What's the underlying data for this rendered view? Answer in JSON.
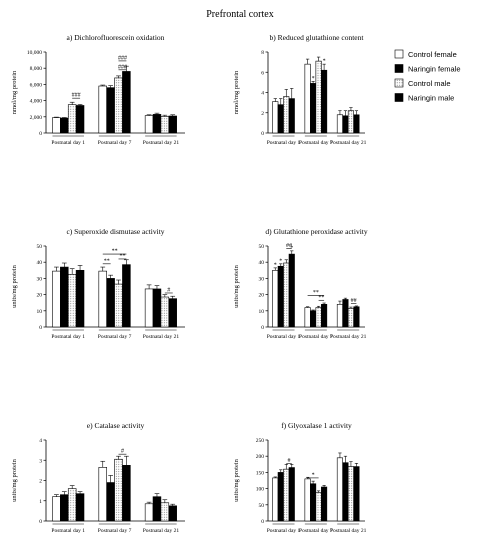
{
  "figure_title": "Prefrontal cortex",
  "legend": [
    {
      "name": "Control female",
      "pattern": "white"
    },
    {
      "name": "Naringin female",
      "pattern": "black"
    },
    {
      "name": "Control male",
      "pattern": "dots"
    },
    {
      "name": "Naringin male",
      "pattern": "black"
    }
  ],
  "chart_data": [
    {
      "id": "a",
      "type": "bar",
      "title": "a) Dichlorofluorescein oxidation",
      "ylabel": "nmol/mg protein",
      "ylim": [
        0,
        10000
      ],
      "yticks": [
        0,
        2000,
        4000,
        6000,
        8000,
        10000
      ],
      "ytick_labels": [
        "0",
        "2,000",
        "4,000",
        "6,000",
        "8,000",
        "10,000"
      ],
      "categories": [
        "Postnatal day 1",
        "Postnatal day 7",
        "Postnatal day 21"
      ],
      "series": [
        {
          "name": "Control female",
          "values": [
            1900,
            5800,
            2150
          ],
          "errors": [
            60,
            120,
            100
          ]
        },
        {
          "name": "Naringin female",
          "values": [
            1850,
            5600,
            2300
          ],
          "errors": [
            60,
            250,
            150
          ]
        },
        {
          "name": "Control male",
          "values": [
            3500,
            6800,
            2050
          ],
          "errors": [
            300,
            250,
            150
          ]
        },
        {
          "name": "Naringin male",
          "values": [
            3400,
            7600,
            2100
          ],
          "errors": [
            120,
            650,
            150
          ]
        }
      ],
      "annotations": [
        {
          "text": "###",
          "category": 0,
          "from": 2,
          "to": 3,
          "y": 4300
        },
        {
          "text": "###",
          "category": 1,
          "from": 2,
          "to": 3,
          "y": 8900
        },
        {
          "text": "###",
          "category": 1,
          "from": 2,
          "to": 3,
          "y": 7800
        }
      ]
    },
    {
      "id": "b",
      "type": "bar",
      "title": "b) Reduced glutathione content",
      "ylabel": "nmol/mg protein",
      "ylim": [
        0,
        8
      ],
      "yticks": [
        0,
        2,
        4,
        6,
        8
      ],
      "ytick_labels": [
        "0",
        "2",
        "4",
        "6",
        "8"
      ],
      "categories": [
        "Postnatal day 1",
        "Postnatal day 7",
        "Postnatal day 21"
      ],
      "series": [
        {
          "name": "Control female",
          "values": [
            3.1,
            6.8,
            1.8
          ],
          "errors": [
            0.3,
            0.5,
            0.4
          ]
        },
        {
          "name": "Naringin female",
          "values": [
            2.8,
            4.9,
            1.7
          ],
          "errors": [
            0.6,
            0.2,
            0.5
          ]
        },
        {
          "name": "Control male",
          "values": [
            3.6,
            7.1,
            2.2
          ],
          "errors": [
            0.7,
            0.4,
            0.3
          ]
        },
        {
          "name": "Naringin male",
          "values": [
            3.4,
            6.2,
            1.8
          ],
          "errors": [
            1.0,
            0.6,
            0.4
          ]
        }
      ],
      "annotations": [
        {
          "text": "*",
          "category": 1,
          "bar": 1,
          "y": 5.25
        },
        {
          "text": "*",
          "category": 1,
          "bar": 3,
          "y": 6.95
        }
      ]
    },
    {
      "id": "c",
      "type": "bar",
      "title": "c) Superoxide dismutase activity",
      "ylabel": "units/mg protein",
      "ylim": [
        0,
        50
      ],
      "yticks": [
        0,
        10,
        20,
        30,
        40,
        50
      ],
      "ytick_labels": [
        "0",
        "10",
        "20",
        "30",
        "40",
        "50"
      ],
      "categories": [
        "Postnatal day 1",
        "Postnatal day 7",
        "Postnatal day 21"
      ],
      "series": [
        {
          "name": "Control female",
          "values": [
            34.5,
            34.5,
            23.5
          ],
          "errors": [
            2.5,
            2.5,
            2.5
          ]
        },
        {
          "name": "Naringin female",
          "values": [
            37,
            30,
            23.5
          ],
          "errors": [
            2.5,
            2,
            2
          ]
        },
        {
          "name": "Control male",
          "values": [
            32.5,
            26.5,
            18.5
          ],
          "errors": [
            3.5,
            2.5,
            1.5
          ]
        },
        {
          "name": "Naringin male",
          "values": [
            35,
            38.5,
            17.5
          ],
          "errors": [
            3,
            3,
            1.5
          ]
        }
      ],
      "annotations": [
        {
          "text": "**",
          "category": 1,
          "from": 0,
          "to": 3,
          "y": 45
        },
        {
          "text": "**",
          "category": 1,
          "from": 2,
          "to": 3,
          "y": 42
        },
        {
          "text": "**",
          "category": 1,
          "from": 0,
          "to": 1,
          "y": 39
        },
        {
          "text": "#",
          "category": 2,
          "from": 2,
          "to": 3,
          "y": 21
        }
      ]
    },
    {
      "id": "d",
      "type": "bar",
      "title": "d) Glutathione peroxidase activity",
      "ylabel": "units/mg protein",
      "ylim": [
        0,
        50
      ],
      "yticks": [
        0,
        10,
        20,
        30,
        40,
        50
      ],
      "ytick_labels": [
        "0",
        "10",
        "20",
        "30",
        "40",
        "50"
      ],
      "categories": [
        "Postnatal day 1",
        "Postnatal day 7",
        "Postnatal day 21"
      ],
      "series": [
        {
          "name": "Control female",
          "values": [
            35,
            12,
            14
          ],
          "errors": [
            1.5,
            0.5,
            2
          ]
        },
        {
          "name": "Naringin female",
          "values": [
            37.5,
            10,
            17
          ],
          "errors": [
            1.5,
            0.5,
            0.8
          ]
        },
        {
          "name": "Control male",
          "values": [
            39.5,
            12,
            11.5
          ],
          "errors": [
            2,
            0.8,
            0.8
          ]
        },
        {
          "name": "Naringin male",
          "values": [
            45,
            14,
            12.5
          ],
          "errors": [
            2,
            0.8,
            0.5
          ]
        }
      ],
      "annotations": [
        {
          "text": "*",
          "category": 0,
          "bar": 0,
          "y": 37.3
        },
        {
          "text": "*",
          "category": 0,
          "bar": 1,
          "y": 39.8
        },
        {
          "text": "*",
          "category": 0,
          "bar": 3,
          "y": 47.8
        },
        {
          "text": "##",
          "category": 0,
          "from": 2,
          "to": 3,
          "y": 48.5
        },
        {
          "text": "**",
          "category": 1,
          "from": 0,
          "to": 3,
          "y": 19.5
        },
        {
          "text": "**",
          "category": 1,
          "from": 2,
          "to": 3,
          "y": 16.5
        },
        {
          "text": "##",
          "category": 2,
          "from": 2,
          "to": 3,
          "y": 14.5
        }
      ]
    },
    {
      "id": "e",
      "type": "bar",
      "title": "e) Catalase activity",
      "ylabel": "units/mg protein",
      "ylim": [
        0,
        4
      ],
      "yticks": [
        0,
        1,
        2,
        3,
        4
      ],
      "ytick_labels": [
        "0",
        "1",
        "2",
        "3",
        "4"
      ],
      "categories": [
        "Postnatal day 1",
        "Postnatal day 7",
        "Postnatal day 21"
      ],
      "series": [
        {
          "name": "Control female",
          "values": [
            1.2,
            2.65,
            0.85
          ],
          "errors": [
            0.1,
            0.3,
            0.08
          ]
        },
        {
          "name": "Naringin female",
          "values": [
            1.3,
            1.9,
            1.2
          ],
          "errors": [
            0.15,
            0.35,
            0.15
          ]
        },
        {
          "name": "Control male",
          "values": [
            1.6,
            3.05,
            0.9
          ],
          "errors": [
            0.15,
            0.15,
            0.15
          ]
        },
        {
          "name": "Naringin male",
          "values": [
            1.35,
            2.75,
            0.75
          ],
          "errors": [
            0.1,
            0.45,
            0.08
          ]
        }
      ],
      "annotations": [
        {
          "text": "#",
          "category": 1,
          "from": 2,
          "to": 3,
          "y": 3.3
        }
      ]
    },
    {
      "id": "f",
      "type": "bar",
      "title": "f) Glyoxalase 1 activity",
      "ylabel": "units/mg protein",
      "ylim": [
        0,
        250
      ],
      "yticks": [
        0,
        50,
        100,
        150,
        200,
        250
      ],
      "ytick_labels": [
        "0",
        "50",
        "100",
        "150",
        "200",
        "250"
      ],
      "categories": [
        "Postnatal day 1",
        "Postnatal day 7",
        "Postnatal day 21"
      ],
      "series": [
        {
          "name": "Control female",
          "values": [
            133,
            130,
            195
          ],
          "errors": [
            3,
            5,
            15
          ]
        },
        {
          "name": "Naringin female",
          "values": [
            150,
            115,
            180
          ],
          "errors": [
            8,
            8,
            20
          ]
        },
        {
          "name": "Control male",
          "values": [
            160,
            88,
            168
          ],
          "errors": [
            15,
            5,
            15
          ]
        },
        {
          "name": "Naringin male",
          "values": [
            165,
            105,
            168
          ],
          "errors": [
            10,
            5,
            10
          ]
        }
      ],
      "annotations": [
        {
          "text": "#",
          "category": 0,
          "from": 2,
          "to": 3,
          "y": 177
        },
        {
          "text": "*",
          "category": 1,
          "from": 0,
          "to": 2,
          "y": 133
        }
      ]
    }
  ]
}
